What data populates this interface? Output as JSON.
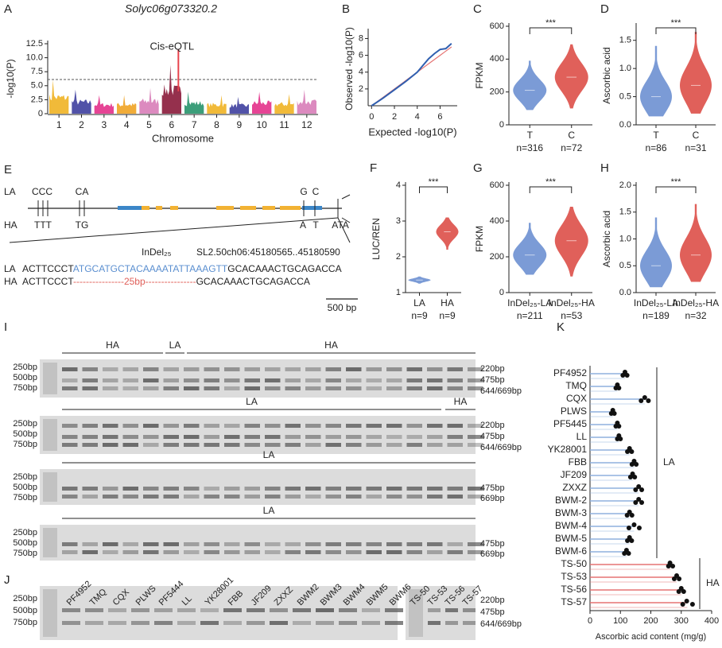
{
  "chart_data": [
    {
      "type": "manhattan",
      "label": "A",
      "title": "Solyc06g073320.2",
      "ylabel": "-log10(P)",
      "xlabel": "Chromosome",
      "categories": [
        "1",
        "2",
        "3",
        "4",
        "5",
        "6",
        "7",
        "8",
        "9",
        "10",
        "11",
        "12"
      ],
      "values": [
        6.0,
        4.3,
        3.3,
        3.3,
        4.6,
        8.7,
        3.9,
        3.3,
        3.0,
        3.9,
        3.5,
        4.3
      ],
      "colors": [
        "#f0b323",
        "#3e3f9e",
        "#e3308a",
        "#f0a323",
        "#d87db8",
        "#8a1a3a",
        "#27946b",
        "#f0b323",
        "#3e3f9e",
        "#e3308a",
        "#f0b323",
        "#d87db8"
      ],
      "threshold": 6.1,
      "annotation": {
        "text": "Cis-eQTL",
        "category": "6",
        "value": 11.5,
        "color": "#e8424c"
      },
      "ylim": [
        0,
        12.5
      ],
      "yticks": [
        0,
        2.5,
        {
          "value": 5,
          "label": "5.0"
        },
        7.5,
        {
          "value": 10,
          "label": "10.0"
        },
        12.5
      ]
    },
    {
      "type": "line",
      "label": "B",
      "xlabel": "Expected -log10(P)",
      "ylabel": "Observed -log10(P)",
      "x": [
        0,
        1,
        2,
        3,
        4,
        4.5,
        5,
        5.5,
        6,
        6.5,
        7
      ],
      "series": [
        {
          "color": "#2f5fb0",
          "values": [
            0,
            0.9,
            1.9,
            2.9,
            4,
            4.8,
            5.6,
            6.2,
            6.7,
            6.8,
            7.4
          ]
        },
        {
          "color": "#e57373",
          "values": [
            0,
            1,
            2,
            3,
            4,
            4.5,
            5,
            5.5,
            6,
            6.5,
            7
          ]
        }
      ],
      "xlim": [
        -0.3,
        7.5
      ],
      "xticks": [
        0,
        2,
        4,
        6
      ],
      "ylim": [
        0,
        8.8
      ],
      "yticks": [
        2,
        4,
        6,
        8
      ]
    },
    {
      "type": "violin",
      "label": "C",
      "ylabel": "FPKM",
      "categories": [
        "T",
        "C"
      ],
      "n_labels": [
        "n=316",
        "n=72"
      ],
      "colors": [
        "#7b9bd6",
        "#e0605a"
      ],
      "median": [
        210,
        290
      ],
      "min": [
        90,
        100
      ],
      "max": [
        390,
        490
      ],
      "significance": "***",
      "ylim": [
        0,
        600
      ],
      "yticks": [
        0,
        200,
        400,
        600
      ]
    },
    {
      "type": "violin",
      "label": "D",
      "ylabel": "Ascorbic acid",
      "categories": [
        "T",
        "C"
      ],
      "n_labels": [
        "n=86",
        "n=31"
      ],
      "colors": [
        "#7b9bd6",
        "#e0605a"
      ],
      "median": [
        0.5,
        0.7
      ],
      "min": [
        0.15,
        0.2
      ],
      "max": [
        1.4,
        1.65
      ],
      "significance": "***",
      "ylim": [
        0,
        1.75
      ],
      "yticks": [
        {
          "value": 0,
          "label": "0.0"
        },
        0.5,
        {
          "value": 1,
          "label": "1.0"
        },
        1.5
      ]
    },
    {
      "type": "violin",
      "label": "F",
      "ylabel": "LUC/REN",
      "categories": [
        "LA",
        "HA"
      ],
      "n_labels": [
        "n=9",
        "n=9"
      ],
      "colors": [
        "#7b9bd6",
        "#e0605a"
      ],
      "median": [
        1.35,
        2.7
      ],
      "min": [
        1.25,
        2.2
      ],
      "max": [
        1.45,
        3.1
      ],
      "significance": "***",
      "ylim": [
        1,
        4
      ],
      "yticks": [
        1,
        2,
        3,
        4
      ]
    },
    {
      "type": "violin",
      "label": "G",
      "ylabel": "FPKM",
      "categories": [
        "InDel₂₅-LA",
        "InDel₂₅-HA"
      ],
      "n_labels": [
        "n=211",
        "n=53"
      ],
      "colors": [
        "#7b9bd6",
        "#e0605a"
      ],
      "median": [
        210,
        290
      ],
      "min": [
        100,
        90
      ],
      "max": [
        390,
        480
      ],
      "significance": "***",
      "ylim": [
        0,
        600
      ],
      "yticks": [
        0,
        200,
        400,
        600
      ]
    },
    {
      "type": "violin",
      "label": "H",
      "ylabel": "Ascorbic acid",
      "categories": [
        "InDel₂₅-LA",
        "InDel₂₅-HA"
      ],
      "n_labels": [
        "n=189",
        "n=32"
      ],
      "colors": [
        "#7b9bd6",
        "#e0605a"
      ],
      "median": [
        0.5,
        0.7
      ],
      "min": [
        0.1,
        0.2
      ],
      "max": [
        1.4,
        1.65
      ],
      "significance": "***",
      "ylim": [
        0,
        2.0
      ],
      "yticks": [
        {
          "value": 0,
          "label": "0.0"
        },
        0.5,
        {
          "value": 1,
          "label": "1.0"
        },
        1.5,
        {
          "value": 2,
          "label": "2.0"
        }
      ]
    },
    {
      "type": "dotbar",
      "label": "K",
      "xlabel": "Ascorbic acid content  (mg/g)",
      "series": [
        {
          "name": "LA",
          "color": "#8fb0dd",
          "categories": [
            "PF4952",
            "TMQ",
            "CQX",
            "PLWS",
            "PF5445",
            "LL",
            "YK28001",
            "FBB",
            "JF209",
            "ZXXZ",
            "BWM-2",
            "BWM-3",
            "BWM-4",
            "BWM-5",
            "BWM-6"
          ],
          "values": [
            115,
            90,
            180,
            75,
            90,
            95,
            130,
            145,
            140,
            160,
            160,
            130,
            145,
            130,
            120
          ],
          "replicates": [
            [
              108,
              115,
              122
            ],
            [
              85,
              90,
              95
            ],
            [
              168,
              180,
              192
            ],
            [
              70,
              75,
              80
            ],
            [
              85,
              90,
              95
            ],
            [
              90,
              95,
              100
            ],
            [
              123,
              130,
              137
            ],
            [
              138,
              145,
              152
            ],
            [
              133,
              140,
              147
            ],
            [
              150,
              160,
              170
            ],
            [
              150,
              160,
              170
            ],
            [
              122,
              130,
              138
            ],
            [
              128,
              145,
              162
            ],
            [
              123,
              130,
              137
            ],
            [
              113,
              120,
              127
            ]
          ]
        },
        {
          "name": "HA",
          "color": "#e57373",
          "categories": [
            "TS-50",
            "TS-53",
            "TS-56",
            "TS-57"
          ],
          "values": [
            265,
            285,
            300,
            320
          ],
          "replicates": [
            [
              258,
              263,
              272
            ],
            [
              277,
              285,
              293
            ],
            [
              292,
              300,
              308
            ],
            [
              305,
              318,
              337
            ]
          ]
        }
      ],
      "xlim": [
        0,
        400
      ],
      "xticks": [
        0,
        100,
        200,
        300,
        400
      ]
    }
  ],
  "gene_structure": {
    "label": "E",
    "alleles": [
      "LA",
      "HA"
    ],
    "la_sites": [
      "CCC",
      "CA",
      "G",
      "C"
    ],
    "ha_sites": [
      "TTT",
      "TG",
      "A",
      "T",
      "ATA"
    ],
    "indel": "InDel₂₅",
    "coordinate": "SL2.50ch06:45180565..45180590",
    "la_sequence": [
      "ACTTCCCT",
      "ATGCATGCTACAAAATATTAAAGTT",
      "GCACAAACTGCAGACCA"
    ],
    "ha_sequence": [
      "ACTTCCCT",
      "----------------25bp----------------",
      "GCACAAACTGCAGACCA"
    ],
    "scale": "500 bp"
  },
  "gel_I": {
    "label": "I",
    "ladder": [
      "250bp",
      "500bp",
      "750bp"
    ],
    "rows": [
      {
        "groups": [
          "HA",
          "LA",
          "HA"
        ],
        "sizes": [
          "220bp",
          "475bp",
          "644/669bp"
        ]
      },
      {
        "groups": [
          "LA",
          "HA"
        ],
        "sizes": [
          "220bp",
          "475bp",
          "644/669bp"
        ]
      },
      {
        "groups": [
          "LA"
        ],
        "sizes": [
          "475bp",
          "669bp"
        ]
      },
      {
        "groups": [
          "LA"
        ],
        "sizes": [
          "475bp",
          "669bp"
        ]
      }
    ]
  },
  "gel_J": {
    "label": "J",
    "ladder": [
      "250bp",
      "500bp",
      "750bp"
    ],
    "lanes": [
      "PF4952",
      "TMQ",
      "CQX",
      "PLWS",
      "PF5444",
      "LL",
      "YK28001",
      "FBB",
      "JF209",
      "ZXXZ",
      "BWM2",
      "BWM3",
      "BWM4",
      "BWM5",
      "BWM6"
    ],
    "lanes_ha": [
      "TS-50",
      "TS-53",
      "TS-56",
      "TS-57"
    ],
    "sizes": [
      "220bp",
      "475bp",
      "644/669bp"
    ]
  }
}
